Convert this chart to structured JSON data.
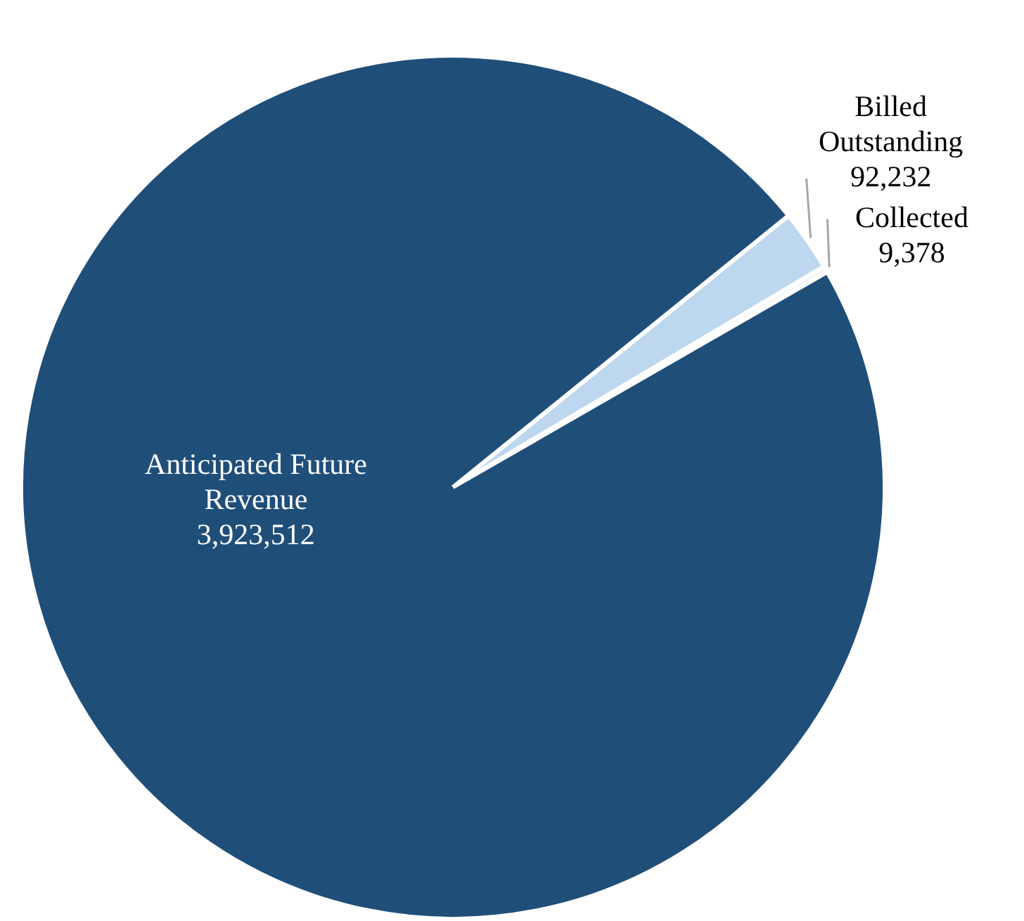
{
  "chart_data": {
    "type": "pie",
    "categories": [
      "Billed Outstanding",
      "Collected",
      "Anticipated Future Revenue"
    ],
    "values": [
      92232,
      9378,
      3923512
    ],
    "colors": [
      "#bdd7ee",
      "#eef4fa",
      "#1f4e79"
    ],
    "value_labels": [
      "92,232",
      "9,378",
      "3,923,512"
    ],
    "legend": false
  }
}
